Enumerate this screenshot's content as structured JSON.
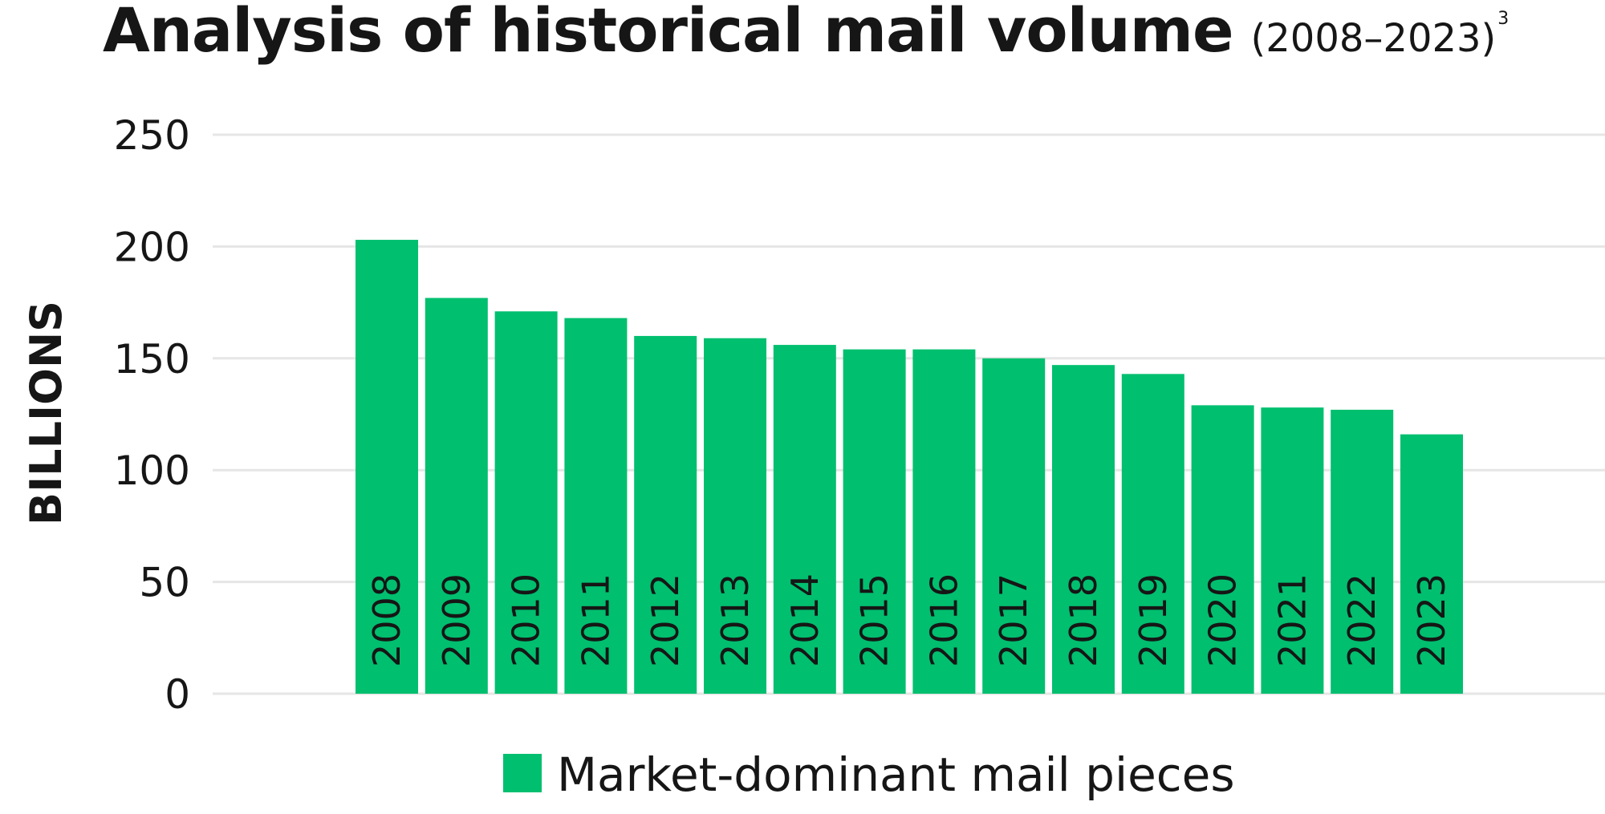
{
  "title": {
    "main": "Analysis of historical mail volume",
    "sub": "(2008–2023)",
    "footnote_marker": "3"
  },
  "colors": {
    "bar": "#00BF6F",
    "grid": "#E6E6E6",
    "text": "#161616"
  },
  "chart_data": {
    "type": "bar",
    "title": "Analysis of historical mail volume (2008–2023)",
    "xlabel": "",
    "ylabel": "BILLIONS",
    "ylim": [
      0,
      250
    ],
    "yticks": [
      0,
      50,
      100,
      150,
      200,
      250
    ],
    "grid": true,
    "legend_position": "bottom",
    "categories": [
      "2008",
      "2009",
      "2010",
      "2011",
      "2012",
      "2013",
      "2014",
      "2015",
      "2016",
      "2017",
      "2018",
      "2019",
      "2020",
      "2021",
      "2022",
      "2023"
    ],
    "series": [
      {
        "name": "Market-dominant mail pieces",
        "values": [
          203,
          177,
          171,
          168,
          160,
          159,
          156,
          154,
          154,
          150,
          147,
          143,
          129,
          128,
          127,
          116
        ]
      }
    ]
  }
}
